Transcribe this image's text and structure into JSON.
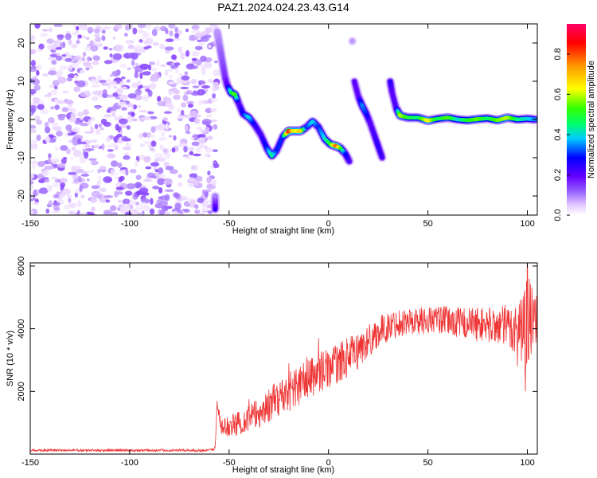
{
  "figure": {
    "title": "PAZ1.2024.024.23.43.G14"
  },
  "chart_data": [
    {
      "type": "heatmap",
      "title": "PAZ1.2024.024.23.43.G14",
      "xlabel": "Height of straight line (km)",
      "ylabel": "Frequency (Hz)",
      "xlim": [
        -150,
        105
      ],
      "ylim": [
        -25,
        25
      ],
      "x_ticks": [
        -150,
        -100,
        -50,
        0,
        50,
        100
      ],
      "y_ticks": [
        -20,
        -10,
        0,
        10,
        20
      ],
      "grid": false,
      "colorbar": {
        "label": "Normalized spectral amplitude",
        "range": [
          0,
          0.95
        ],
        "ticks": [
          0.0,
          0.2,
          0.4,
          0.6,
          0.8
        ],
        "colormap": [
          "#ffffff",
          "#e6ccff",
          "#9966ff",
          "#6600ff",
          "#0000ff",
          "#00ccff",
          "#00ff66",
          "#33ff00",
          "#ffff00",
          "#ff9900",
          "#ff0000",
          "#ff0066"
        ]
      },
      "noise_region": {
        "x_range": [
          -150,
          -60
        ],
        "y_range": [
          -25,
          25
        ],
        "amplitude_range": [
          0.02,
          0.15
        ]
      },
      "signal_track": [
        {
          "x": -57,
          "y": -23.5,
          "amp": 0.25
        },
        {
          "x": -57,
          "y": -20,
          "amp": 0.1
        },
        {
          "x": -56,
          "y": 23,
          "amp": 0.08
        },
        {
          "x": -55,
          "y": 20,
          "amp": 0.1
        },
        {
          "x": -54,
          "y": 17,
          "amp": 0.12
        },
        {
          "x": -53,
          "y": 14,
          "amp": 0.14
        },
        {
          "x": -52,
          "y": 11,
          "amp": 0.16
        },
        {
          "x": -51,
          "y": 9,
          "amp": 0.2
        },
        {
          "x": -49,
          "y": 7,
          "amp": 0.45
        },
        {
          "x": -47,
          "y": 6.5,
          "amp": 0.55
        },
        {
          "x": -45,
          "y": 4,
          "amp": 0.2
        },
        {
          "x": -43,
          "y": 1.5,
          "amp": 0.28
        },
        {
          "x": -40,
          "y": 0.5,
          "amp": 0.4
        },
        {
          "x": -37,
          "y": -1.5,
          "amp": 0.25
        },
        {
          "x": -34,
          "y": -4,
          "amp": 0.22
        },
        {
          "x": -31,
          "y": -7.5,
          "amp": 0.3
        },
        {
          "x": -28.5,
          "y": -9.5,
          "amp": 0.45
        },
        {
          "x": -26,
          "y": -8,
          "amp": 0.3
        },
        {
          "x": -23,
          "y": -4.5,
          "amp": 0.3
        },
        {
          "x": -20,
          "y": -3,
          "amp": 0.85
        },
        {
          "x": -17,
          "y": -3,
          "amp": 0.6
        },
        {
          "x": -14,
          "y": -3,
          "amp": 0.7
        },
        {
          "x": -11,
          "y": -2,
          "amp": 0.3
        },
        {
          "x": -8,
          "y": -0.5,
          "amp": 0.4
        },
        {
          "x": -5,
          "y": -2,
          "amp": 0.3
        },
        {
          "x": -2,
          "y": -5,
          "amp": 0.4
        },
        {
          "x": 1,
          "y": -6.5,
          "amp": 0.5
        },
        {
          "x": 4,
          "y": -7,
          "amp": 0.8
        },
        {
          "x": 6,
          "y": -7.5,
          "amp": 0.55
        },
        {
          "x": 8.5,
          "y": -9,
          "amp": 0.3
        },
        {
          "x": 10.5,
          "y": -11,
          "amp": 0.22
        },
        {
          "x": 12,
          "y": 20.5,
          "amp": 0.08
        },
        {
          "x": 13,
          "y": 10,
          "amp": 0.2
        },
        {
          "x": 15,
          "y": 6,
          "amp": 0.2
        },
        {
          "x": 17,
          "y": 3.5,
          "amp": 0.35
        },
        {
          "x": 19,
          "y": 1.5,
          "amp": 0.3
        },
        {
          "x": 21,
          "y": -1,
          "amp": 0.2
        },
        {
          "x": 23,
          "y": -4,
          "amp": 0.22
        },
        {
          "x": 25,
          "y": -7,
          "amp": 0.25
        },
        {
          "x": 27,
          "y": -10,
          "amp": 0.22
        },
        {
          "x": 31,
          "y": 10,
          "amp": 0.25
        },
        {
          "x": 32,
          "y": 7,
          "amp": 0.2
        },
        {
          "x": 34,
          "y": 3,
          "amp": 0.22
        },
        {
          "x": 36,
          "y": 1,
          "amp": 0.6
        },
        {
          "x": 40,
          "y": 0.5,
          "amp": 0.5
        },
        {
          "x": 45,
          "y": 0.5,
          "amp": 0.45
        },
        {
          "x": 50,
          "y": -0.3,
          "amp": 0.65
        },
        {
          "x": 55,
          "y": 0.2,
          "amp": 0.45
        },
        {
          "x": 60,
          "y": 0.5,
          "amp": 0.55
        },
        {
          "x": 65,
          "y": 0,
          "amp": 0.4
        },
        {
          "x": 70,
          "y": -0.2,
          "amp": 0.5
        },
        {
          "x": 75,
          "y": 0.1,
          "amp": 0.55
        },
        {
          "x": 80,
          "y": 0.3,
          "amp": 0.45
        },
        {
          "x": 85,
          "y": -0.2,
          "amp": 0.55
        },
        {
          "x": 90,
          "y": 0.5,
          "amp": 0.6
        },
        {
          "x": 95,
          "y": 0,
          "amp": 0.45
        },
        {
          "x": 100,
          "y": 0.2,
          "amp": 0.4
        },
        {
          "x": 104,
          "y": 0,
          "amp": 0.35
        }
      ]
    },
    {
      "type": "line",
      "xlabel": "Height of straight line (km)",
      "ylabel": "SNR (10 * v/v)",
      "xlim": [
        -150,
        105
      ],
      "ylim": [
        0,
        6100
      ],
      "x_ticks": [
        -150,
        -100,
        -50,
        0,
        50,
        100
      ],
      "y_ticks": [
        2000,
        4000,
        6000
      ],
      "grid": false,
      "color": "#ee3333",
      "envelope": [
        {
          "x": -150,
          "y": 120,
          "spread": 40
        },
        {
          "x": -60,
          "y": 120,
          "spread": 40
        },
        {
          "x": -57,
          "y": 180,
          "spread": 60
        },
        {
          "x": -56,
          "y": 1600,
          "spread": 150
        },
        {
          "x": -54,
          "y": 800,
          "spread": 300
        },
        {
          "x": -45,
          "y": 1000,
          "spread": 400
        },
        {
          "x": -35,
          "y": 1300,
          "spread": 500
        },
        {
          "x": -25,
          "y": 1800,
          "spread": 600
        },
        {
          "x": -15,
          "y": 2200,
          "spread": 700
        },
        {
          "x": -5,
          "y": 2600,
          "spread": 650
        },
        {
          "x": 5,
          "y": 2900,
          "spread": 650
        },
        {
          "x": 15,
          "y": 3300,
          "spread": 600
        },
        {
          "x": 25,
          "y": 3900,
          "spread": 500
        },
        {
          "x": 35,
          "y": 4200,
          "spread": 450
        },
        {
          "x": 45,
          "y": 4250,
          "spread": 450
        },
        {
          "x": 55,
          "y": 4300,
          "spread": 450
        },
        {
          "x": 65,
          "y": 4200,
          "spread": 500
        },
        {
          "x": 75,
          "y": 4150,
          "spread": 550
        },
        {
          "x": 85,
          "y": 4100,
          "spread": 600
        },
        {
          "x": 95,
          "y": 4000,
          "spread": 900
        },
        {
          "x": 100,
          "y": 4200,
          "spread": 1500
        },
        {
          "x": 105,
          "y": 4300,
          "spread": 700
        }
      ],
      "spikes": [
        {
          "x": -56,
          "y": 1700
        },
        {
          "x": -40,
          "y": 1750
        },
        {
          "x": -20,
          "y": 2900
        },
        {
          "x": -11,
          "y": 3100
        },
        {
          "x": -5,
          "y": 3700
        },
        {
          "x": 95,
          "y": 2800
        },
        {
          "x": 99,
          "y": 2000
        },
        {
          "x": 100,
          "y": 6100
        },
        {
          "x": 101,
          "y": 5600
        }
      ]
    }
  ]
}
